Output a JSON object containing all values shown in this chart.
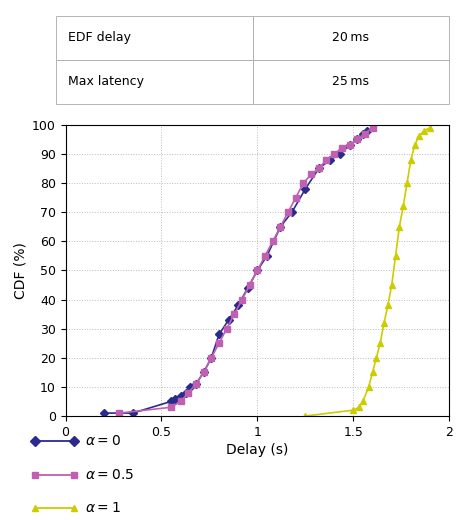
{
  "xlabel": "Delay (s)",
  "ylabel": "CDF (%)",
  "xlim": [
    0,
    2
  ],
  "ylim": [
    0,
    100
  ],
  "xticks": [
    0,
    0.5,
    1,
    1.5,
    2
  ],
  "yticks": [
    0,
    10,
    20,
    30,
    40,
    50,
    60,
    70,
    80,
    90,
    100
  ],
  "series": [
    {
      "label": "α = 0",
      "color": "#2b2b8f",
      "marker": "D",
      "markersize": 4,
      "linewidth": 1.2,
      "x": [
        0.2,
        0.35,
        0.55,
        0.57,
        0.6,
        0.63,
        0.65,
        0.68,
        0.72,
        0.76,
        0.8,
        0.85,
        0.9,
        0.95,
        1.0,
        1.05,
        1.12,
        1.18,
        1.25,
        1.32,
        1.38,
        1.43,
        1.48,
        1.52,
        1.55,
        1.57
      ],
      "y": [
        1,
        1,
        5,
        6,
        7,
        8,
        10,
        11,
        15,
        20,
        28,
        33,
        38,
        44,
        50,
        55,
        65,
        70,
        78,
        85,
        88,
        90,
        93,
        95,
        97,
        98
      ]
    },
    {
      "label": "α = 0.5",
      "color": "#c060b0",
      "marker": "s",
      "markersize": 4,
      "linewidth": 1.2,
      "x": [
        0.28,
        0.55,
        0.6,
        0.64,
        0.68,
        0.72,
        0.76,
        0.8,
        0.84,
        0.88,
        0.92,
        0.96,
        1.0,
        1.04,
        1.08,
        1.12,
        1.16,
        1.2,
        1.24,
        1.28,
        1.32,
        1.36,
        1.4,
        1.44,
        1.48,
        1.52,
        1.56,
        1.6
      ],
      "y": [
        1,
        3,
        5,
        8,
        11,
        15,
        20,
        25,
        30,
        35,
        40,
        45,
        50,
        55,
        60,
        65,
        70,
        75,
        80,
        83,
        85,
        88,
        90,
        92,
        93,
        95,
        97,
        99
      ]
    },
    {
      "label": "α = 1",
      "color": "#cccc00",
      "marker": "^",
      "markersize": 5,
      "linewidth": 1.2,
      "x": [
        1.25,
        1.5,
        1.53,
        1.55,
        1.58,
        1.6,
        1.62,
        1.64,
        1.66,
        1.68,
        1.7,
        1.72,
        1.74,
        1.76,
        1.78,
        1.8,
        1.82,
        1.84,
        1.87,
        1.9
      ],
      "y": [
        0,
        2,
        3,
        5,
        10,
        15,
        20,
        25,
        32,
        38,
        45,
        55,
        65,
        72,
        80,
        88,
        93,
        96,
        98,
        99
      ]
    }
  ],
  "legend_entries": [
    {
      "label": "α = 0",
      "color": "#2b2b8f",
      "marker": "D"
    },
    {
      "label": "α = 0.5",
      "color": "#c060b0",
      "marker": "s"
    },
    {
      "label": "α = 1",
      "color": "#cccc00",
      "marker": "^"
    }
  ],
  "table": [
    [
      "EDF delay",
      "20 ms"
    ],
    [
      "Max latency",
      "25 ms"
    ]
  ],
  "figsize": [
    4.68,
    5.2
  ],
  "dpi": 100
}
